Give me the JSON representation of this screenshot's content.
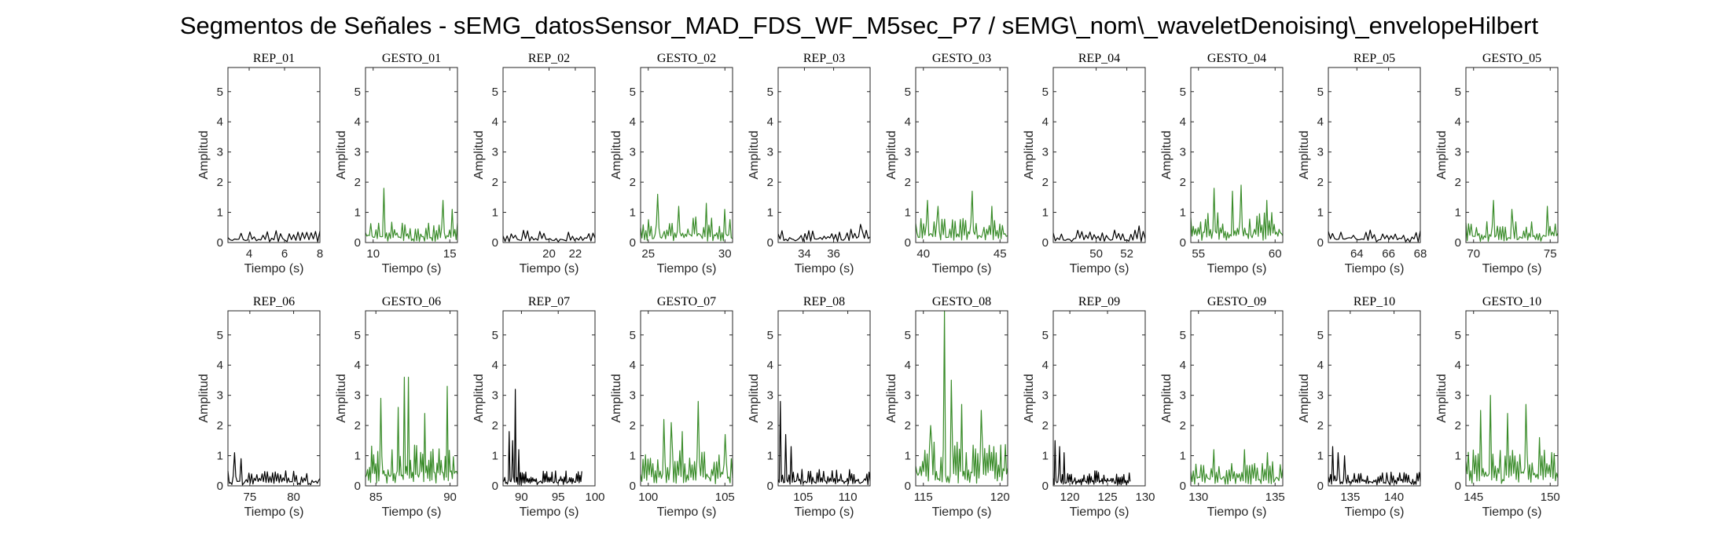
{
  "figure": {
    "title": "Segmentos de Señales - sEMG_datosSensor_MAD_FDS_WF_M5sec_P7 / sEMG\\_nom\\_waveletDenoising\\_envelopeHilbert"
  },
  "colors": {
    "rep": "#000000",
    "gesto": "#3a8c2a",
    "axes": "#262626"
  },
  "chart_data": [
    {
      "type": "line",
      "title": "REP_01",
      "xlabel": "Tiempo (s)",
      "ylabel": "Amplitud",
      "xlim": [
        2.8,
        8
      ],
      "ylim": [
        0,
        5.8
      ],
      "xticks": [
        4,
        6,
        8
      ],
      "yticks": [
        0,
        1,
        2,
        3,
        4,
        5
      ],
      "series": [
        {
          "name": "",
          "x_range": [
            2.8,
            8
          ],
          "amp": 0.4,
          "count": 42,
          "color": "#000000",
          "peaks": []
        }
      ]
    },
    {
      "type": "line",
      "title": "GESTO_01",
      "xlabel": "Tiempo (s)",
      "ylabel": "Amplitud",
      "xlim": [
        9.5,
        15.5
      ],
      "ylim": [
        0,
        5.8
      ],
      "xticks": [
        10,
        15
      ],
      "yticks": [
        0,
        1,
        2,
        3,
        4,
        5
      ],
      "series": [
        {
          "name": "",
          "x_range": [
            9.5,
            15.5
          ],
          "amp": 0.7,
          "count": 70,
          "color": "#3a8c2a",
          "peaks": [
            [
              10.7,
              1.8
            ],
            [
              14.6,
              1.4
            ],
            [
              15.2,
              1.1
            ]
          ]
        }
      ]
    },
    {
      "type": "line",
      "title": "REP_02",
      "xlabel": "Tiempo (s)",
      "ylabel": "Amplitud",
      "xlim": [
        16.5,
        23.5
      ],
      "ylim": [
        0,
        5.8
      ],
      "xticks": [
        20,
        22
      ],
      "yticks": [
        0,
        1,
        2,
        3,
        4,
        5
      ],
      "series": [
        {
          "name": "",
          "x_range": [
            16.5,
            23.5
          ],
          "amp": 0.42,
          "count": 45,
          "color": "#000000",
          "peaks": []
        }
      ]
    },
    {
      "type": "line",
      "title": "GESTO_02",
      "xlabel": "Tiempo (s)",
      "ylabel": "Amplitud",
      "xlim": [
        24.5,
        30.5
      ],
      "ylim": [
        0,
        5.8
      ],
      "xticks": [
        25,
        30
      ],
      "yticks": [
        0,
        1,
        2,
        3,
        4,
        5
      ],
      "series": [
        {
          "name": "",
          "x_range": [
            24.5,
            30.5
          ],
          "amp": 0.85,
          "count": 70,
          "color": "#3a8c2a",
          "peaks": [
            [
              25.6,
              1.6
            ],
            [
              27,
              1.2
            ],
            [
              28.8,
              1.3
            ],
            [
              30,
              1.1
            ]
          ]
        }
      ]
    },
    {
      "type": "line",
      "title": "REP_03",
      "xlabel": "Tiempo (s)",
      "ylabel": "Amplitud",
      "xlim": [
        32.2,
        38.5
      ],
      "ylim": [
        0,
        5.8
      ],
      "xticks": [
        34,
        36
      ],
      "yticks": [
        0,
        1,
        2,
        3,
        4,
        5
      ],
      "series": [
        {
          "name": "",
          "x_range": [
            32.2,
            38.5
          ],
          "amp": 0.45,
          "count": 48,
          "color": "#000000",
          "peaks": [
            [
              37.8,
              0.6
            ]
          ]
        }
      ]
    },
    {
      "type": "line",
      "title": "GESTO_03",
      "xlabel": "Tiempo (s)",
      "ylabel": "Amplitud",
      "xlim": [
        39.5,
        45.5
      ],
      "ylim": [
        0,
        5.8
      ],
      "xticks": [
        40,
        45
      ],
      "yticks": [
        0,
        1,
        2,
        3,
        4,
        5
      ],
      "series": [
        {
          "name": "",
          "x_range": [
            39.5,
            45.5
          ],
          "amp": 0.9,
          "count": 70,
          "color": "#3a8c2a",
          "peaks": [
            [
              40.3,
              1.4
            ],
            [
              41,
              1.2
            ],
            [
              43.2,
              1.7
            ],
            [
              44.5,
              1.2
            ]
          ]
        }
      ]
    },
    {
      "type": "line",
      "title": "REP_04",
      "xlabel": "Tiempo (s)",
      "ylabel": "Amplitud",
      "xlim": [
        47.2,
        53.2
      ],
      "ylim": [
        0,
        5.8
      ],
      "xticks": [
        50,
        52
      ],
      "yticks": [
        0,
        1,
        2,
        3,
        4,
        5
      ],
      "series": [
        {
          "name": "",
          "x_range": [
            47.2,
            53.2
          ],
          "amp": 0.42,
          "count": 45,
          "color": "#000000",
          "peaks": [
            [
              52.8,
              0.55
            ]
          ]
        }
      ]
    },
    {
      "type": "line",
      "title": "GESTO_04",
      "xlabel": "Tiempo (s)",
      "ylabel": "Amplitud",
      "xlim": [
        54.5,
        60.5
      ],
      "ylim": [
        0,
        5.8
      ],
      "xticks": [
        55,
        60
      ],
      "yticks": [
        0,
        1,
        2,
        3,
        4,
        5
      ],
      "series": [
        {
          "name": "",
          "x_range": [
            54.5,
            60.5
          ],
          "amp": 1.0,
          "count": 75,
          "color": "#3a8c2a",
          "peaks": [
            [
              56,
              1.8
            ],
            [
              57.2,
              1.7
            ],
            [
              57.8,
              1.9
            ],
            [
              59.5,
              1.4
            ]
          ]
        }
      ]
    },
    {
      "type": "line",
      "title": "REP_05",
      "xlabel": "Tiempo (s)",
      "ylabel": "Amplitud",
      "xlim": [
        62.2,
        68
      ],
      "ylim": [
        0,
        5.8
      ],
      "xticks": [
        64,
        66,
        68
      ],
      "yticks": [
        0,
        1,
        2,
        3,
        4,
        5
      ],
      "series": [
        {
          "name": "",
          "x_range": [
            62.2,
            68
          ],
          "amp": 0.42,
          "count": 44,
          "color": "#000000",
          "peaks": []
        }
      ]
    },
    {
      "type": "line",
      "title": "GESTO_05",
      "xlabel": "Tiempo (s)",
      "ylabel": "Amplitud",
      "xlim": [
        69.5,
        75.5
      ],
      "ylim": [
        0,
        5.8
      ],
      "xticks": [
        70,
        75
      ],
      "yticks": [
        0,
        1,
        2,
        3,
        4,
        5
      ],
      "series": [
        {
          "name": "",
          "x_range": [
            69.5,
            75.5
          ],
          "amp": 0.7,
          "count": 70,
          "color": "#3a8c2a",
          "peaks": [
            [
              71.3,
              1.4
            ],
            [
              72.5,
              1.1
            ],
            [
              74.8,
              1.2
            ]
          ]
        }
      ]
    },
    {
      "type": "line",
      "title": "REP_06",
      "xlabel": "Tiempo (s)",
      "ylabel": "Amplitud",
      "xlim": [
        72.5,
        83
      ],
      "ylim": [
        0,
        5.8
      ],
      "xticks": [
        75,
        80
      ],
      "yticks": [
        0,
        1,
        2,
        3,
        4,
        5
      ],
      "series": [
        {
          "name": "",
          "x_range": [
            72.5,
            83
          ],
          "amp": 0.5,
          "count": 70,
          "color": "#000000",
          "peaks": [
            [
              73.2,
              1.1
            ],
            [
              74,
              0.9
            ]
          ]
        }
      ]
    },
    {
      "type": "line",
      "title": "GESTO_06",
      "xlabel": "Tiempo (s)",
      "ylabel": "Amplitud",
      "xlim": [
        84.3,
        90.5
      ],
      "ylim": [
        0,
        5.8
      ],
      "xticks": [
        85,
        90
      ],
      "yticks": [
        0,
        1,
        2,
        3,
        4,
        5
      ],
      "series": [
        {
          "name": "",
          "x_range": [
            84.3,
            90.5
          ],
          "amp": 1.4,
          "count": 90,
          "color": "#3a8c2a",
          "peaks": [
            [
              85.3,
              2.9
            ],
            [
              86.5,
              2.6
            ],
            [
              86.9,
              3.6
            ],
            [
              87.2,
              3.6
            ],
            [
              88.3,
              2.4
            ],
            [
              89.8,
              3.3
            ]
          ]
        }
      ]
    },
    {
      "type": "line",
      "title": "REP_07",
      "xlabel": "Tiempo (s)",
      "ylabel": "Amplitud",
      "xlim": [
        87.5,
        100
      ],
      "ylim": [
        0,
        5.8
      ],
      "xticks": [
        90,
        95,
        100
      ],
      "yticks": [
        0,
        1,
        2,
        3,
        4,
        5
      ],
      "series": [
        {
          "name": "",
          "x_range": [
            87.5,
            98.2
          ],
          "amp": 0.5,
          "count": 90,
          "color": "#000000",
          "peaks": [
            [
              88.3,
              1.8
            ],
            [
              88.8,
              1.5
            ],
            [
              89.2,
              3.2
            ],
            [
              89.6,
              1.2
            ]
          ]
        }
      ]
    },
    {
      "type": "line",
      "title": "GESTO_07",
      "xlabel": "Tiempo (s)",
      "ylabel": "Amplitud",
      "xlim": [
        99.5,
        105.5
      ],
      "ylim": [
        0,
        5.8
      ],
      "xticks": [
        100,
        105
      ],
      "yticks": [
        0,
        1,
        2,
        3,
        4,
        5
      ],
      "series": [
        {
          "name": "",
          "x_range": [
            99.5,
            105.5
          ],
          "amp": 1.2,
          "count": 75,
          "color": "#3a8c2a",
          "peaks": [
            [
              101,
              2.2
            ],
            [
              101.5,
              2.1
            ],
            [
              102.2,
              1.8
            ],
            [
              103.3,
              2.8
            ],
            [
              105,
              1.7
            ]
          ]
        }
      ]
    },
    {
      "type": "line",
      "title": "REP_08",
      "xlabel": "Tiempo (s)",
      "ylabel": "Amplitud",
      "xlim": [
        102.2,
        112.5
      ],
      "ylim": [
        0,
        5.8
      ],
      "xticks": [
        105,
        110
      ],
      "yticks": [
        0,
        1,
        2,
        3,
        4,
        5
      ],
      "series": [
        {
          "name": "",
          "x_range": [
            102.2,
            112.5
          ],
          "amp": 0.55,
          "count": 85,
          "color": "#000000",
          "peaks": [
            [
              102.4,
              2.8
            ],
            [
              103,
              1.7
            ],
            [
              103.6,
              1.3
            ]
          ]
        }
      ]
    },
    {
      "type": "line",
      "title": "GESTO_08",
      "xlabel": "Tiempo (s)",
      "ylabel": "Amplitud",
      "xlim": [
        114.5,
        120.5
      ],
      "ylim": [
        0,
        5.8
      ],
      "xticks": [
        115,
        120
      ],
      "yticks": [
        0,
        1,
        2,
        3,
        4,
        5
      ],
      "series": [
        {
          "name": "",
          "x_range": [
            114.5,
            120.5
          ],
          "amp": 1.5,
          "count": 80,
          "color": "#3a8c2a",
          "peaks": [
            [
              115.5,
              2
            ],
            [
              116.4,
              5.8
            ],
            [
              116.8,
              3.5
            ],
            [
              117.5,
              2.7
            ],
            [
              118.8,
              2.5
            ]
          ]
        }
      ]
    },
    {
      "type": "line",
      "title": "REP_09",
      "xlabel": "Tiempo (s)",
      "ylabel": "Amplitud",
      "xlim": [
        117.8,
        130
      ],
      "ylim": [
        0,
        5.8
      ],
      "xticks": [
        120,
        125,
        130
      ],
      "yticks": [
        0,
        1,
        2,
        3,
        4,
        5
      ],
      "series": [
        {
          "name": "",
          "x_range": [
            117.8,
            128
          ],
          "amp": 0.5,
          "count": 85,
          "color": "#000000",
          "peaks": [
            [
              118,
              1.5
            ],
            [
              118.6,
              1.3
            ],
            [
              119.2,
              1.1
            ]
          ]
        }
      ]
    },
    {
      "type": "line",
      "title": "GESTO_09",
      "xlabel": "Tiempo (s)",
      "ylabel": "Amplitud",
      "xlim": [
        129.5,
        135.5
      ],
      "ylim": [
        0,
        5.8
      ],
      "xticks": [
        130,
        135
      ],
      "yticks": [
        0,
        1,
        2,
        3,
        4,
        5
      ],
      "series": [
        {
          "name": "",
          "x_range": [
            129.5,
            135.5
          ],
          "amp": 0.85,
          "count": 72,
          "color": "#3a8c2a",
          "peaks": [
            [
              131,
              1.2
            ],
            [
              133,
              1.2
            ],
            [
              134.5,
              1.1
            ]
          ]
        }
      ]
    },
    {
      "type": "line",
      "title": "REP_10",
      "xlabel": "Tiempo (s)",
      "ylabel": "Amplitud",
      "xlim": [
        132.5,
        143
      ],
      "ylim": [
        0,
        5.8
      ],
      "xticks": [
        135,
        140
      ],
      "yticks": [
        0,
        1,
        2,
        3,
        4,
        5
      ],
      "series": [
        {
          "name": "",
          "x_range": [
            132.5,
            143
          ],
          "amp": 0.5,
          "count": 85,
          "color": "#000000",
          "peaks": [
            [
              133,
              1.3
            ],
            [
              133.6,
              1.1
            ],
            [
              134.3,
              1.0
            ]
          ]
        }
      ]
    },
    {
      "type": "line",
      "title": "GESTO_10",
      "xlabel": "Tiempo (s)",
      "ylabel": "Amplitud",
      "xlim": [
        144.5,
        150.5
      ],
      "ylim": [
        0,
        5.8
      ],
      "xticks": [
        145,
        150
      ],
      "yticks": [
        0,
        1,
        2,
        3,
        4,
        5
      ],
      "series": [
        {
          "name": "",
          "x_range": [
            144.5,
            150.5
          ],
          "amp": 1.2,
          "count": 75,
          "color": "#3a8c2a",
          "peaks": [
            [
              145.5,
              2.5
            ],
            [
              146.1,
              3.0
            ],
            [
              147.2,
              2.4
            ],
            [
              148.4,
              2.7
            ],
            [
              149.3,
              1.6
            ]
          ]
        }
      ]
    }
  ]
}
